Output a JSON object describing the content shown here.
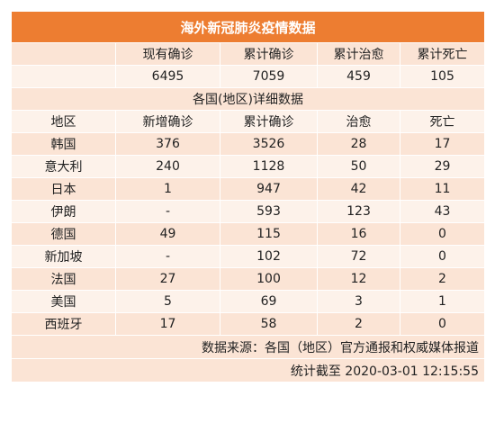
{
  "title": "海外新冠肺炎疫情数据",
  "summary": {
    "headers": [
      "现有确诊",
      "累计确诊",
      "累计治愈",
      "累计死亡"
    ],
    "values": [
      "6495",
      "7059",
      "459",
      "105"
    ]
  },
  "section_title": "各国(地区)详细数据",
  "table": {
    "headers": [
      "地区",
      "新增确诊",
      "累计确诊",
      "治愈",
      "死亡"
    ],
    "rows": [
      [
        "韩国",
        "376",
        "3526",
        "28",
        "17"
      ],
      [
        "意大利",
        "240",
        "1128",
        "50",
        "29"
      ],
      [
        "日本",
        "1",
        "947",
        "42",
        "11"
      ],
      [
        "伊朗",
        "-",
        "593",
        "123",
        "43"
      ],
      [
        "德国",
        "49",
        "115",
        "16",
        "0"
      ],
      [
        "新加坡",
        "-",
        "102",
        "72",
        "0"
      ],
      [
        "法国",
        "27",
        "100",
        "12",
        "2"
      ],
      [
        "美国",
        "5",
        "69",
        "3",
        "1"
      ],
      [
        "西班牙",
        "17",
        "58",
        "2",
        "0"
      ]
    ]
  },
  "footer": {
    "source": "数据来源：各国（地区）官方通报和权威媒体报道",
    "time": "统计截至 2020-03-01 12:15:55"
  },
  "colors": {
    "header": "#ed7d31",
    "band_dark": "#fbe4d5",
    "band_light": "#fdf2ea"
  }
}
